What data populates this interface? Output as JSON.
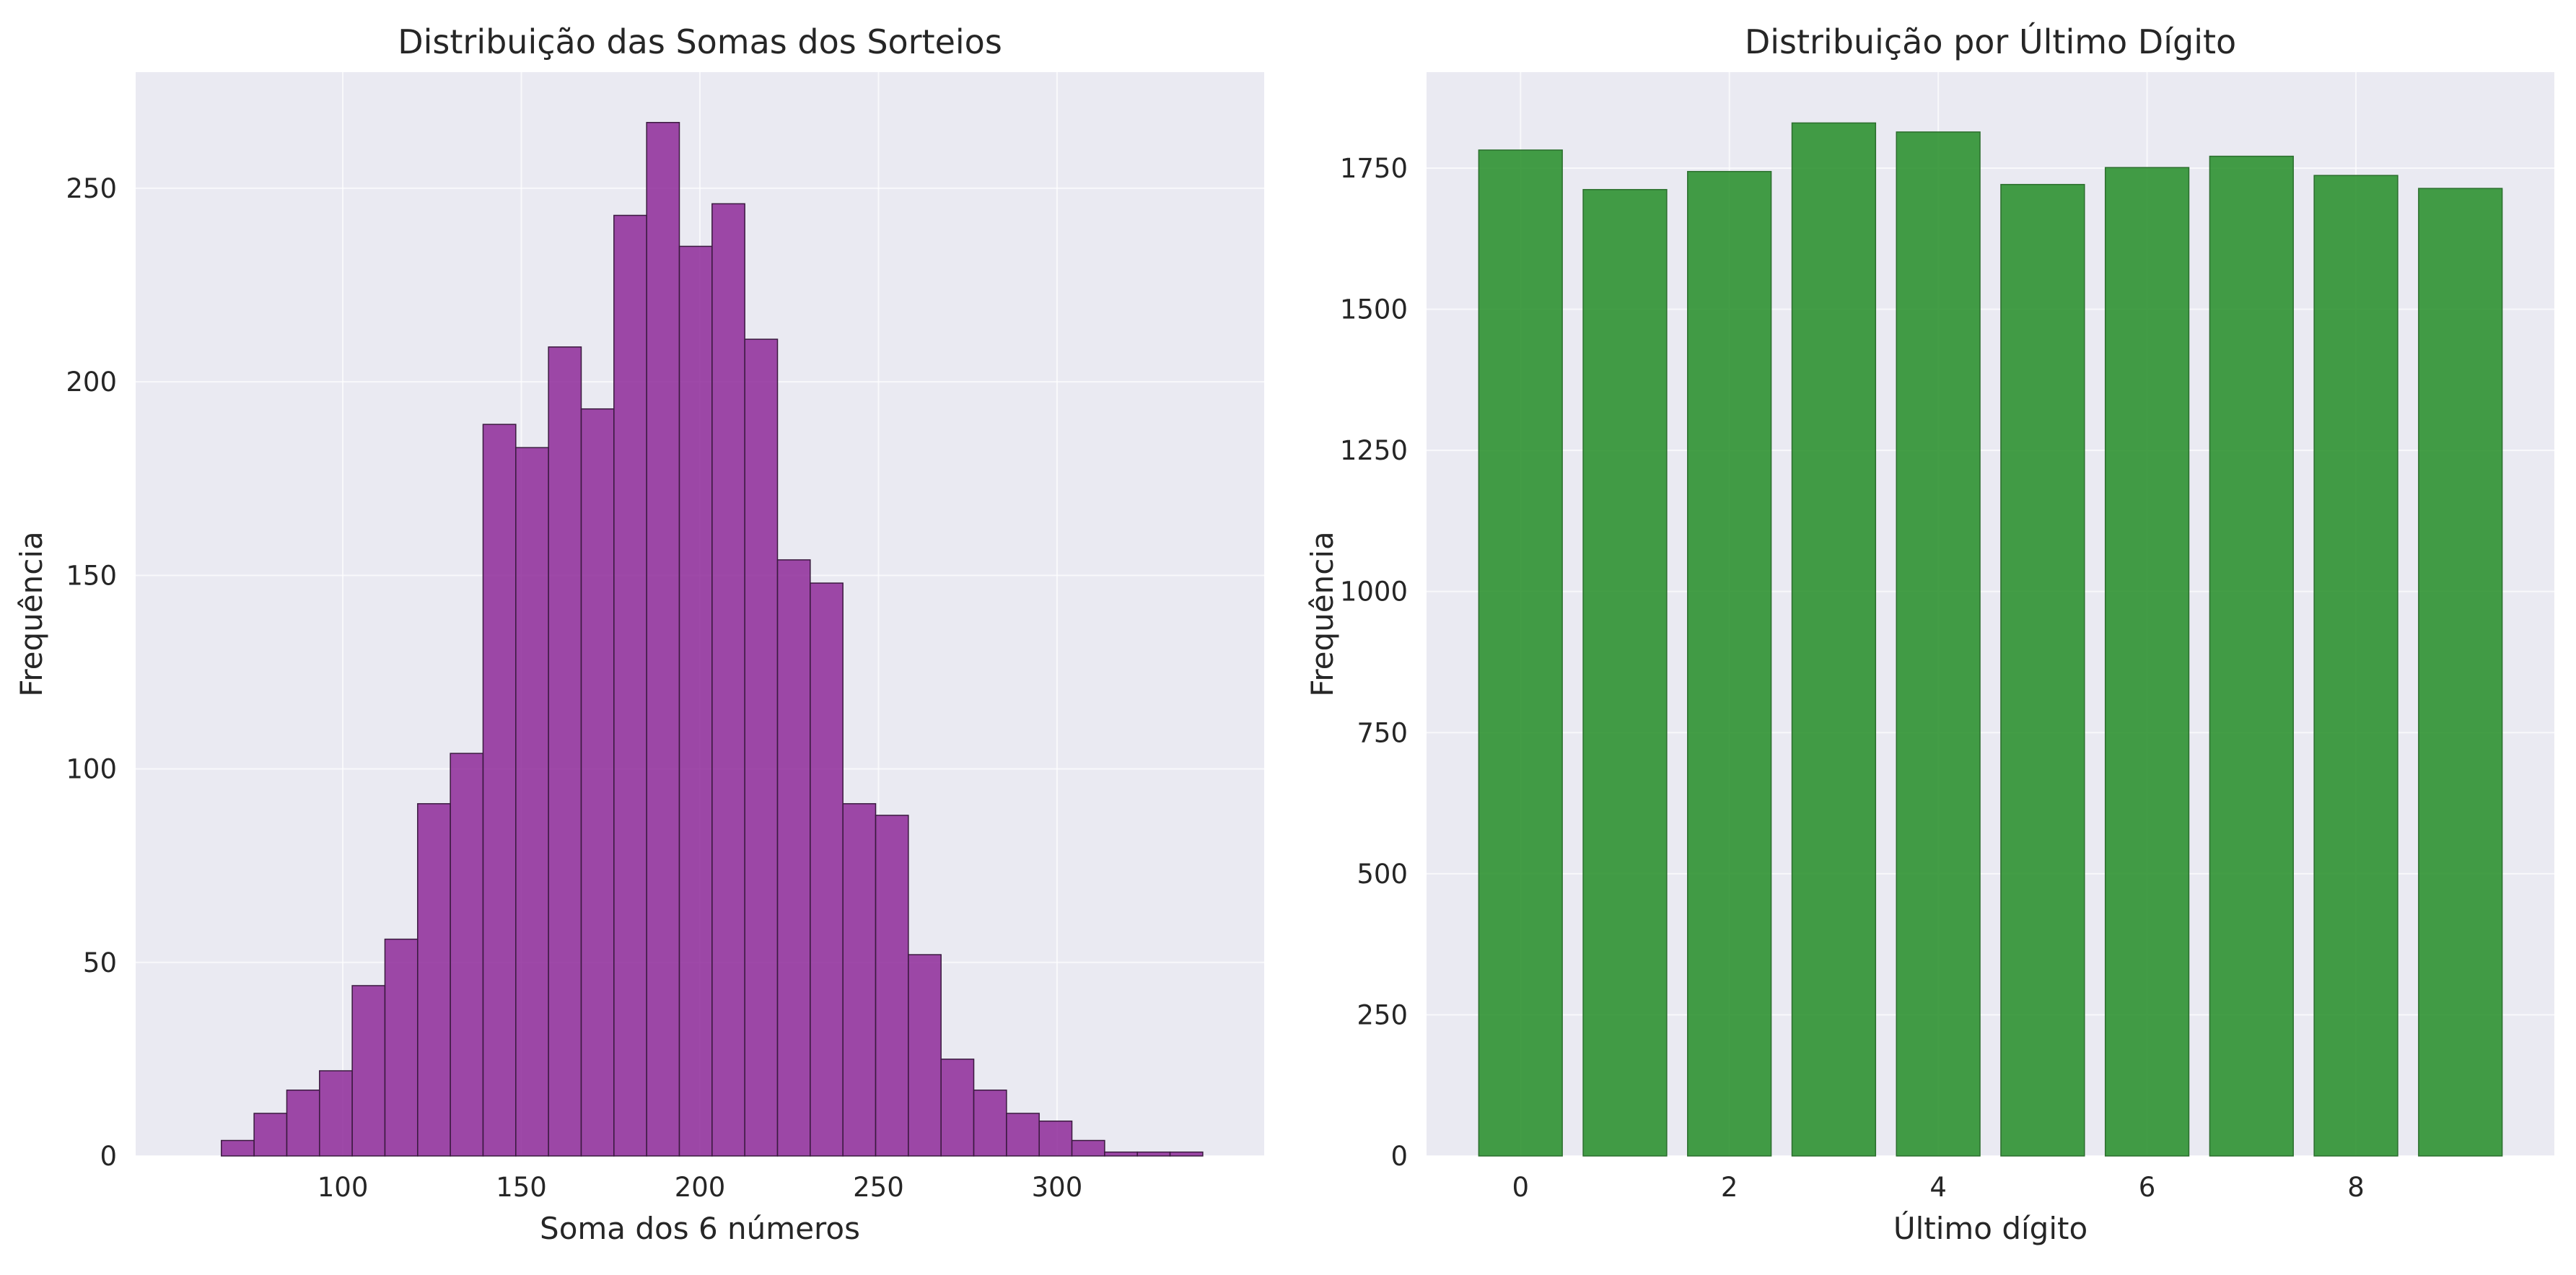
{
  "chart_data": [
    {
      "type": "bar",
      "subtype": "histogram",
      "title": "Distribuição das Somas dos Sorteios",
      "xlabel": "Soma dos 6 números",
      "ylabel": "Frequência",
      "bin_start": 66,
      "bin_width": 9.16,
      "values": [
        4,
        11,
        17,
        22,
        44,
        56,
        91,
        104,
        189,
        183,
        209,
        193,
        243,
        267,
        235,
        246,
        211,
        154,
        148,
        91,
        88,
        52,
        25,
        17,
        11,
        9,
        4,
        1,
        1,
        1
      ],
      "xlim": [
        42,
        358
      ],
      "ylim": [
        0,
        280
      ],
      "xticks": [
        100,
        150,
        200,
        250,
        300
      ],
      "yticks": [
        0,
        50,
        100,
        150,
        200,
        250
      ],
      "grid": true,
      "color": "#8e2a99",
      "edge_color": "#3a1a3f"
    },
    {
      "type": "bar",
      "title": "Distribuição por Último Dígito",
      "xlabel": "Último dígito",
      "ylabel": "Frequência",
      "categories": [
        0,
        1,
        2,
        3,
        4,
        5,
        6,
        7,
        8,
        9
      ],
      "values": [
        1782,
        1712,
        1744,
        1830,
        1814,
        1721,
        1751,
        1771,
        1737,
        1714
      ],
      "xlim": [
        -0.9,
        9.9
      ],
      "ylim": [
        0,
        1920
      ],
      "xticks": [
        0,
        2,
        4,
        6,
        8
      ],
      "yticks": [
        0,
        250,
        500,
        750,
        1000,
        1250,
        1500,
        1750
      ],
      "grid": true,
      "color": "#2f9232",
      "edge_color": "#2b6e2d"
    }
  ]
}
